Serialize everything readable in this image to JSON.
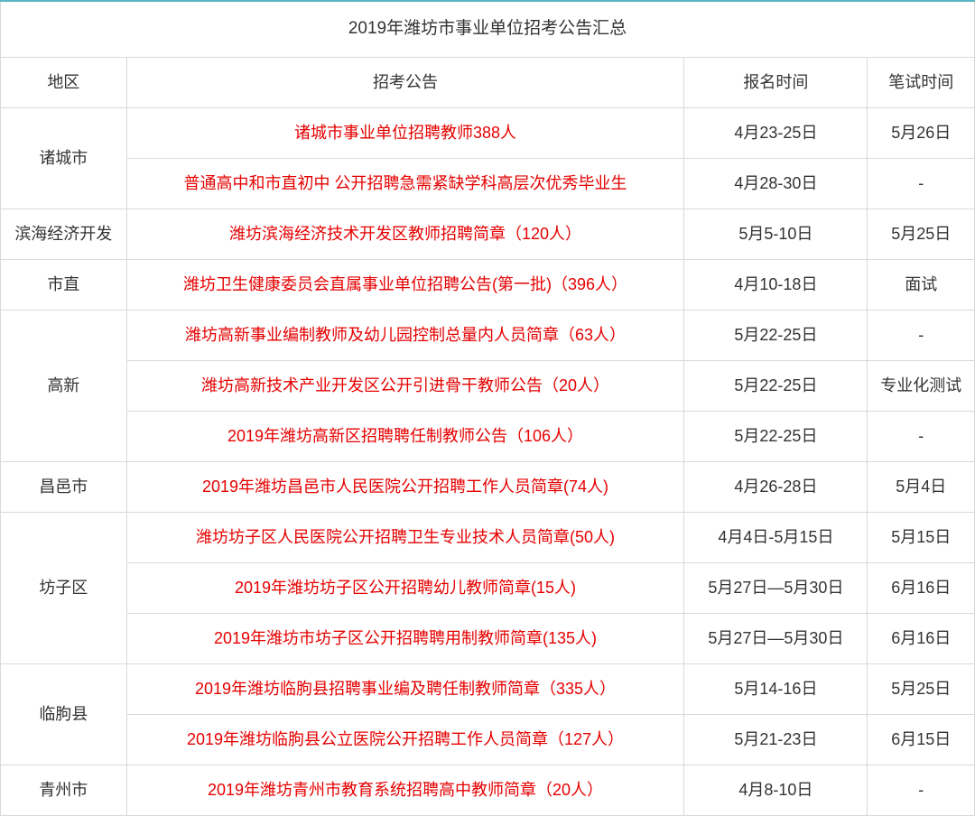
{
  "title": "2019年潍坊市事业单位招考公告汇总",
  "headers": {
    "region": "地区",
    "notice": "招考公告",
    "reg_time": "报名时间",
    "exam_time": "笔试时间"
  },
  "colors": {
    "accent_top_border": "#5ab4c4",
    "cell_border": "#d9d9d9",
    "text_default": "#333333",
    "text_link": "#e60000",
    "background": "#ffffff"
  },
  "rows": [
    {
      "region": "诸城市",
      "rowspan": 2,
      "notice": "诸城市事业单位招聘教师388人",
      "reg": "4月23-25日",
      "exam": "5月26日"
    },
    {
      "notice": "普通高中和市直初中 公开招聘急需紧缺学科高层次优秀毕业生",
      "reg": "4月28-30日",
      "exam": "-"
    },
    {
      "region": "滨海经济开发",
      "rowspan": 1,
      "notice": "潍坊滨海经济技术开发区教师招聘简章（120人）",
      "reg": "5月5-10日",
      "exam": "5月25日"
    },
    {
      "region": "市直",
      "rowspan": 1,
      "notice": "潍坊卫生健康委员会直属事业单位招聘公告(第一批)（396人）",
      "reg": "4月10-18日",
      "exam": "面试"
    },
    {
      "region": "高新",
      "rowspan": 3,
      "notice": "潍坊高新事业编制教师及幼儿园控制总量内人员简章（63人）",
      "reg": "5月22-25日",
      "exam": "-"
    },
    {
      "notice": "潍坊高新技术产业开发区公开引进骨干教师公告（20人）",
      "reg": "5月22-25日",
      "exam": "专业化测试"
    },
    {
      "notice": "2019年潍坊高新区招聘聘任制教师公告（106人）",
      "reg": "5月22-25日",
      "exam": "-"
    },
    {
      "region": "昌邑市",
      "rowspan": 1,
      "notice": "2019年潍坊昌邑市人民医院公开招聘工作人员简章(74人)",
      "reg": "4月26-28日",
      "exam": "5月4日"
    },
    {
      "region": "坊子区",
      "rowspan": 3,
      "notice": "潍坊坊子区人民医院公开招聘卫生专业技术人员简章(50人)",
      "reg": "4月4日-5月15日",
      "exam": "5月15日"
    },
    {
      "notice": "2019年潍坊坊子区公开招聘幼儿教师简章(15人)",
      "reg": "5月27日—5月30日",
      "exam": "6月16日"
    },
    {
      "notice": "2019年潍坊市坊子区公开招聘聘用制教师简章(135人)",
      "reg": "5月27日—5月30日",
      "exam": "6月16日"
    },
    {
      "region": "临朐县",
      "rowspan": 2,
      "notice": "2019年潍坊临朐县招聘事业编及聘任制教师简章（335人）",
      "reg": "5月14-16日",
      "exam": "5月25日"
    },
    {
      "notice": "2019年潍坊临朐县公立医院公开招聘工作人员简章（127人）",
      "reg": "5月21-23日",
      "exam": "6月15日"
    },
    {
      "region": "青州市",
      "rowspan": 1,
      "notice": "2019年潍坊青州市教育系统招聘高中教师简章（20人）",
      "reg": "4月8-10日",
      "exam": "-"
    }
  ]
}
